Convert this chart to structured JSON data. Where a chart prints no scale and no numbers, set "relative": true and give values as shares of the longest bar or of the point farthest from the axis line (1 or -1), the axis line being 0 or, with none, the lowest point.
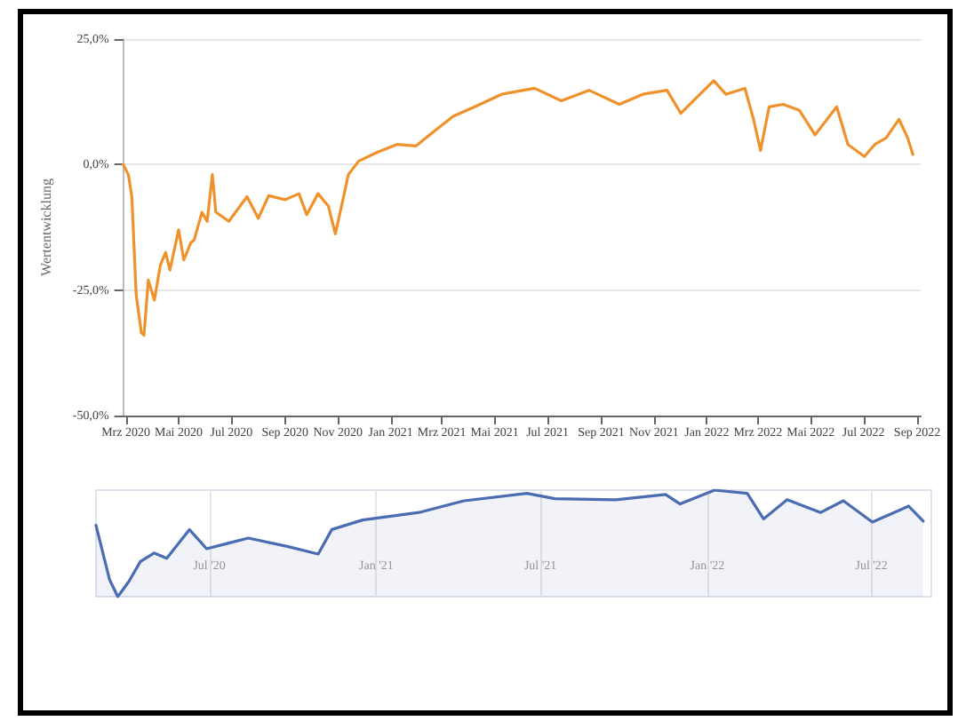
{
  "chart_data": [
    {
      "type": "line",
      "ylabel": "Wertentwicklung",
      "grid": "y",
      "marker": "none",
      "line_style": "solid",
      "xlim": [
        "2020-02-27",
        "2022-09-05"
      ],
      "ylim": [
        -50,
        25
      ],
      "yticks": [
        {
          "value": -50,
          "label": "-50,0%"
        },
        {
          "value": -25,
          "label": "-25,0%"
        },
        {
          "value": 0,
          "label": "0,0%"
        },
        {
          "value": 25,
          "label": "25,0%"
        }
      ],
      "xticks": [
        {
          "value": "2020-03-01",
          "label": "Mrz 2020"
        },
        {
          "value": "2020-05-01",
          "label": "Mai 2020"
        },
        {
          "value": "2020-07-01",
          "label": "Jul 2020"
        },
        {
          "value": "2020-09-01",
          "label": "Sep 2020"
        },
        {
          "value": "2020-11-01",
          "label": "Nov 2020"
        },
        {
          "value": "2021-01-01",
          "label": "Jan 2021"
        },
        {
          "value": "2021-03-01",
          "label": "Mrz 2021"
        },
        {
          "value": "2021-05-01",
          "label": "Mai 2021"
        },
        {
          "value": "2021-07-01",
          "label": "Jul 2021"
        },
        {
          "value": "2021-09-01",
          "label": "Sep 2021"
        },
        {
          "value": "2021-11-01",
          "label": "Nov 2021"
        },
        {
          "value": "2022-01-01",
          "label": "Jan 2022"
        },
        {
          "value": "2022-03-01",
          "label": "Mrz 2022"
        },
        {
          "value": "2022-05-01",
          "label": "Mai 2022"
        },
        {
          "value": "2022-07-01",
          "label": "Jul 2022"
        },
        {
          "value": "2022-09-01",
          "label": "Sep 2022"
        }
      ],
      "series": [
        {
          "color": "#f0922b",
          "x": [
            "2020-02-27",
            "2020-03-04",
            "2020-03-08",
            "2020-03-13",
            "2020-03-19",
            "2020-03-22",
            "2020-03-27",
            "2020-04-03",
            "2020-04-10",
            "2020-04-16",
            "2020-04-21",
            "2020-05-01",
            "2020-05-07",
            "2020-05-15",
            "2020-05-19",
            "2020-05-28",
            "2020-06-03",
            "2020-06-09",
            "2020-06-13",
            "2020-06-28",
            "2020-07-19",
            "2020-08-01",
            "2020-08-13",
            "2020-09-01",
            "2020-09-17",
            "2020-09-26",
            "2020-10-09",
            "2020-10-21",
            "2020-10-29",
            "2020-11-06",
            "2020-11-13",
            "2020-11-25",
            "2020-12-17",
            "2021-01-08",
            "2021-01-30",
            "2021-02-17",
            "2021-03-14",
            "2021-04-08",
            "2021-05-09",
            "2021-06-16",
            "2021-07-17",
            "2021-08-18",
            "2021-09-22",
            "2021-10-19",
            "2021-11-16",
            "2021-12-02",
            "2021-12-20",
            "2022-01-09",
            "2022-01-23",
            "2022-02-14",
            "2022-02-24",
            "2022-03-04",
            "2022-03-14",
            "2022-03-30",
            "2022-04-18",
            "2022-05-06",
            "2022-05-31",
            "2022-06-13",
            "2022-07-02",
            "2022-07-14",
            "2022-07-27",
            "2022-08-11",
            "2022-08-21",
            "2022-08-27"
          ],
          "values": [
            0,
            -2,
            -6.4,
            -26,
            -33.5,
            -34,
            -23,
            -27,
            -20,
            -17.5,
            -21,
            -13,
            -19,
            -15.6,
            -15,
            -9.5,
            -11.3,
            -2,
            -9.5,
            -11.3,
            -6.4,
            -10.7,
            -6.2,
            -7,
            -5.8,
            -10,
            -5.8,
            -8.3,
            -13.8,
            -7.6,
            -2,
            0.7,
            2.5,
            4,
            3.7,
            6.2,
            9.6,
            11.5,
            14,
            15.2,
            12.7,
            14.8,
            12,
            14,
            14.8,
            10.2,
            13.3,
            16.7,
            14,
            15.2,
            9,
            2.8,
            11.5,
            12,
            10.8,
            5.9,
            11.5,
            4,
            1.6,
            4,
            5.3,
            9,
            5.3,
            2
          ]
        }
      ]
    },
    {
      "type": "area",
      "relative": true,
      "grid": "x",
      "marker": "none",
      "xlim": [
        "2020-02-27",
        "2022-09-05"
      ],
      "xticks": [
        {
          "value": "2020-07-01",
          "label": "Jul '20"
        },
        {
          "value": "2021-01-01",
          "label": "Jan '21"
        },
        {
          "value": "2021-07-01",
          "label": "Jul '21"
        },
        {
          "value": "2022-01-01",
          "label": "Jan '22"
        },
        {
          "value": "2022-07-01",
          "label": "Jul '22"
        }
      ],
      "series": [
        {
          "color": "#4a6cb3",
          "x": [
            "2020-02-27",
            "2020-03-13",
            "2020-03-22",
            "2020-04-03",
            "2020-04-16",
            "2020-05-01",
            "2020-05-15",
            "2020-06-09",
            "2020-06-28",
            "2020-08-13",
            "2020-09-26",
            "2020-10-29",
            "2020-11-13",
            "2020-12-17",
            "2021-02-17",
            "2021-04-08",
            "2021-06-16",
            "2021-07-17",
            "2021-09-22",
            "2021-11-16",
            "2021-12-02",
            "2022-01-09",
            "2022-02-14",
            "2022-03-04",
            "2022-03-30",
            "2022-05-06",
            "2022-05-31",
            "2022-07-02",
            "2022-08-11",
            "2022-08-27"
          ],
          "values": [
            0.67,
            0.16,
            0,
            0.14,
            0.33,
            0.41,
            0.36,
            0.63,
            0.45,
            0.55,
            0.47,
            0.4,
            0.63,
            0.72,
            0.79,
            0.9,
            0.97,
            0.92,
            0.91,
            0.96,
            0.87,
            1,
            0.97,
            0.73,
            0.91,
            0.79,
            0.9,
            0.7,
            0.85,
            0.71
          ]
        }
      ]
    }
  ]
}
